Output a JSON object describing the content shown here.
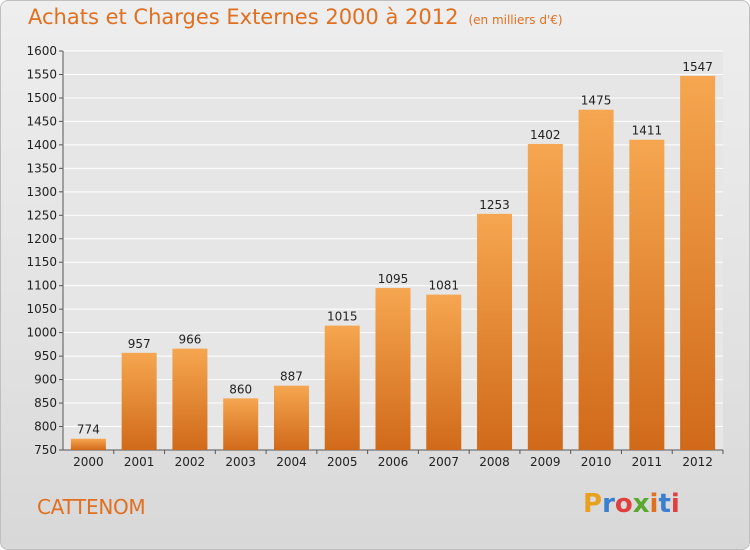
{
  "header": {
    "title": "Achats et Charges Externes 2000 à 2012",
    "unit": "(en milliers d'€)"
  },
  "footer": {
    "commune": "CATTENOM",
    "brand": [
      "P",
      "r",
      "o",
      "x",
      "i",
      "t",
      "i"
    ],
    "brand_colors": [
      "#e8a020",
      "#3a7fd0",
      "#e04040",
      "#5aa830",
      "#e07020",
      "#3a7fd0",
      "#e04040"
    ]
  },
  "colors": {
    "bar_top": "#f6a650",
    "bar_bottom": "#d06a1a",
    "title": "#e07020"
  },
  "chart_data": {
    "type": "bar",
    "title": "Achats et Charges Externes 2000 à 2012",
    "subtitle": "(en milliers d'€)",
    "categories": [
      "2000",
      "2001",
      "2002",
      "2003",
      "2004",
      "2005",
      "2006",
      "2007",
      "2008",
      "2009",
      "2010",
      "2011",
      "2012"
    ],
    "values": [
      774,
      957,
      966,
      860,
      887,
      1015,
      1095,
      1081,
      1253,
      1402,
      1475,
      1411,
      1547
    ],
    "ylim": [
      750,
      1600
    ],
    "yticks": [
      750,
      800,
      850,
      900,
      950,
      1000,
      1050,
      1100,
      1150,
      1200,
      1250,
      1300,
      1350,
      1400,
      1450,
      1500,
      1550,
      1600
    ],
    "grid": true,
    "xlabel": "",
    "ylabel": ""
  }
}
